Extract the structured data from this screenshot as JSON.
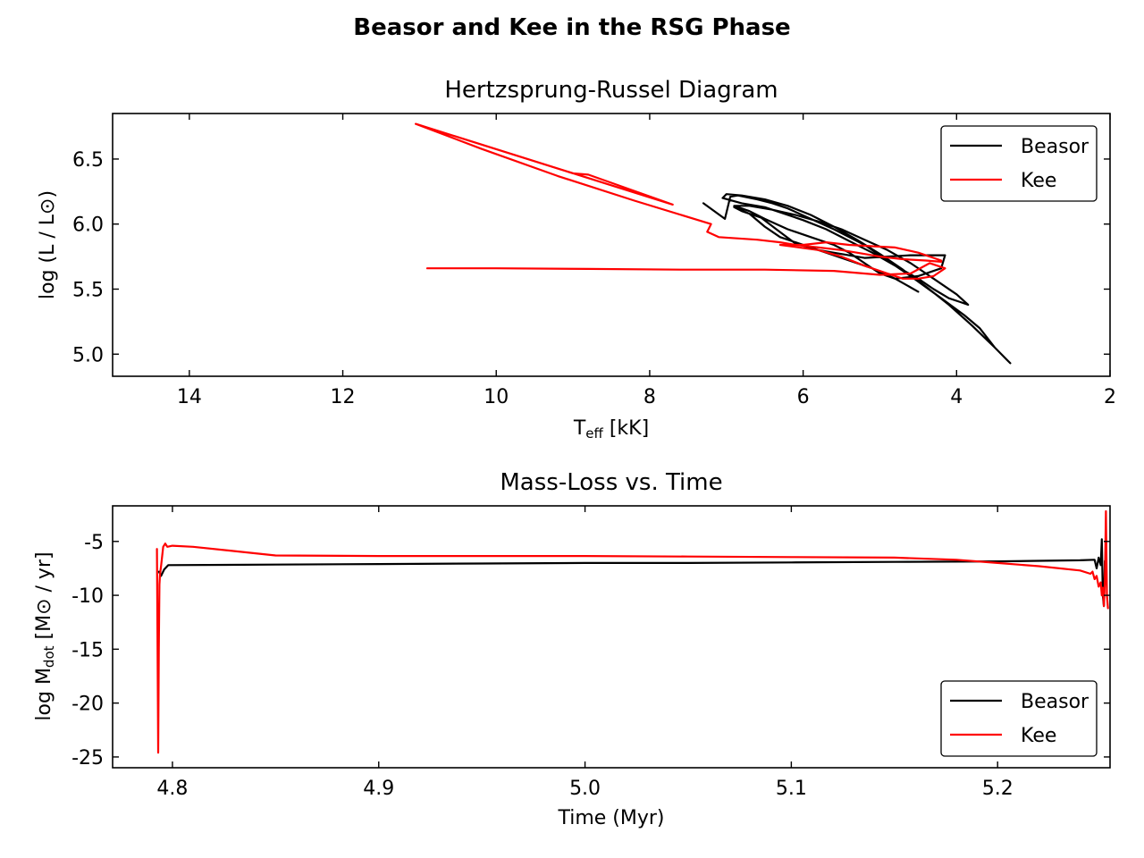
{
  "figure": {
    "suptitle": "Beasor and Kee in the RSG Phase"
  },
  "colors": {
    "beasor": "#000000",
    "kee": "#ff0000"
  },
  "chart_data": [
    {
      "type": "line",
      "title": "Hertzsprung-Russel Diagram",
      "xlabel": "T_eff [kK]",
      "ylabel": "log (L / L⊙)",
      "xlim": [
        15,
        2
      ],
      "ylim": [
        4.83,
        6.85
      ],
      "x_inverted": true,
      "xticks": [
        14,
        12,
        10,
        8,
        6,
        4,
        2
      ],
      "xtick_labels": [
        "14",
        "12",
        "10",
        "8",
        "6",
        "4",
        "2"
      ],
      "yticks": [
        5.0,
        5.5,
        6.0,
        6.5
      ],
      "ytick_labels": [
        "5.0",
        "5.5",
        "6.0",
        "6.5"
      ],
      "grid": false,
      "legend": "top-right",
      "series": [
        {
          "name": "Beasor",
          "color": "#000000",
          "x": [
            7.3,
            7.02,
            6.95,
            6.85,
            6.6,
            6.4,
            6.2,
            5.9,
            5.6,
            5.2,
            4.9,
            4.6,
            4.2,
            3.9,
            3.7,
            3.5,
            3.35,
            3.3,
            3.5,
            3.8,
            4.1,
            4.4,
            4.7,
            5.0,
            5.3,
            5.6,
            5.9,
            6.2,
            6.5,
            6.8,
            7.0,
            7.05,
            6.8,
            6.5,
            6.3,
            6.0,
            5.7,
            5.4,
            5.1,
            4.8,
            4.5,
            4.3,
            4.1,
            3.95,
            3.85,
            4.0,
            4.3,
            4.6,
            4.9,
            5.2,
            5.5,
            5.8,
            6.1,
            6.4,
            6.7,
            6.9,
            6.7,
            6.5,
            6.2,
            5.9,
            5.6,
            5.4,
            5.2,
            5.0,
            4.8,
            4.5,
            4.2,
            4.15,
            4.35,
            4.6,
            4.9,
            5.2,
            5.5,
            5.8,
            6.1,
            6.35,
            6.55,
            6.8,
            6.9,
            6.7,
            6.5,
            6.3,
            6.1,
            5.9,
            5.7,
            5.4,
            5.1,
            4.8,
            4.5
          ],
          "y": [
            6.16,
            6.04,
            6.21,
            6.22,
            6.19,
            6.16,
            6.12,
            6.04,
            5.96,
            5.84,
            5.72,
            5.6,
            5.43,
            5.3,
            5.2,
            5.05,
            4.96,
            4.93,
            5.05,
            5.22,
            5.38,
            5.52,
            5.65,
            5.77,
            5.88,
            5.98,
            6.07,
            6.14,
            6.19,
            6.22,
            6.23,
            6.2,
            6.16,
            6.13,
            6.09,
            6.03,
            5.96,
            5.87,
            5.78,
            5.68,
            5.58,
            5.5,
            5.43,
            5.4,
            5.38,
            5.46,
            5.58,
            5.7,
            5.8,
            5.88,
            5.96,
            6.02,
            6.07,
            6.11,
            6.14,
            6.14,
            6.1,
            6.04,
            5.96,
            5.9,
            5.84,
            5.78,
            5.7,
            5.62,
            5.58,
            5.6,
            5.66,
            5.76,
            5.76,
            5.76,
            5.75,
            5.74,
            5.77,
            5.8,
            5.85,
            5.96,
            6.05,
            6.1,
            6.13,
            6.08,
            5.98,
            5.9,
            5.86,
            5.82,
            5.78,
            5.72,
            5.66,
            5.58,
            5.48
          ]
        },
        {
          "name": "Kee",
          "color": "#ff0000",
          "x": [
            11.05,
            9.0,
            8.8,
            7.7,
            11.05,
            10.2,
            9.2,
            8.2,
            7.2,
            7.25,
            7.1,
            6.6,
            6.3,
            6.1,
            5.8,
            5.5,
            5.3,
            5.0,
            4.7,
            4.4,
            4.2,
            4.2,
            4.5,
            4.8,
            5.1,
            5.4,
            5.7,
            6.0,
            6.3,
            5.8,
            5.5,
            5.2,
            4.9,
            4.7,
            4.5,
            4.3,
            4.15,
            4.35,
            4.6,
            5.0,
            5.6,
            6.5,
            7.6,
            8.8,
            10.0,
            10.9
          ],
          "y": [
            6.77,
            6.39,
            6.38,
            6.15,
            6.77,
            6.58,
            6.37,
            6.18,
            6.0,
            5.94,
            5.9,
            5.88,
            5.86,
            5.84,
            5.82,
            5.8,
            5.78,
            5.75,
            5.73,
            5.72,
            5.71,
            5.72,
            5.78,
            5.82,
            5.83,
            5.84,
            5.86,
            5.84,
            5.84,
            5.8,
            5.75,
            5.68,
            5.62,
            5.58,
            5.58,
            5.6,
            5.66,
            5.7,
            5.62,
            5.61,
            5.64,
            5.65,
            5.65,
            5.655,
            5.66,
            5.66
          ]
        }
      ]
    },
    {
      "type": "line",
      "title": "Mass-Loss vs. Time",
      "xlabel": "Time (Myr)",
      "ylabel": "log M_dot [M⊙ / yr]",
      "xlim": [
        4.771,
        5.2545
      ],
      "ylim": [
        -26,
        -1.7
      ],
      "xticks": [
        4.8,
        4.9,
        5.0,
        5.1,
        5.2
      ],
      "xtick_labels": [
        "4.8",
        "4.9",
        "5.0",
        "5.1",
        "5.2"
      ],
      "yticks": [
        -5,
        -10,
        -15,
        -20,
        -25
      ],
      "ytick_labels": [
        "-5",
        "-10",
        "-15",
        "-20",
        "-25"
      ],
      "grid": false,
      "legend": "lower-right",
      "series": [
        {
          "name": "Beasor",
          "color": "#000000",
          "x": [
            4.7935,
            4.7945,
            4.796,
            4.798,
            4.85,
            4.9,
            4.95,
            5.0,
            5.05,
            5.1,
            5.15,
            5.2,
            5.24,
            5.247,
            5.248,
            5.249,
            5.25,
            5.2505,
            5.251,
            5.2515,
            5.252,
            5.2525
          ],
          "y": [
            -7.8,
            -8.2,
            -7.6,
            -7.2,
            -7.15,
            -7.1,
            -7.05,
            -7.0,
            -7.0,
            -6.95,
            -6.9,
            -6.85,
            -6.75,
            -6.7,
            -7.5,
            -6.5,
            -7.2,
            -4.8,
            -10.0,
            -11.0,
            -6.8,
            -6.7
          ]
        },
        {
          "name": "Kee",
          "color": "#ff0000",
          "x": [
            4.7925,
            4.7928,
            4.7931,
            4.7934,
            4.7937,
            4.794,
            4.7945,
            4.7955,
            4.7965,
            4.7975,
            4.8,
            4.81,
            4.83,
            4.85,
            4.9,
            5.0,
            5.05,
            5.1,
            5.15,
            5.18,
            5.2,
            5.22,
            5.24,
            5.245,
            5.246,
            5.247,
            5.248,
            5.249,
            5.25,
            5.2505,
            5.251,
            5.2515,
            5.252,
            5.2525,
            5.253,
            5.2535
          ],
          "y": [
            -5.7,
            -15.0,
            -24.6,
            -15.0,
            -9.0,
            -8.0,
            -7.3,
            -5.5,
            -5.2,
            -5.5,
            -5.4,
            -5.5,
            -5.9,
            -6.3,
            -6.35,
            -6.35,
            -6.4,
            -6.45,
            -6.5,
            -6.7,
            -7.0,
            -7.3,
            -7.7,
            -8.0,
            -7.8,
            -8.5,
            -8.2,
            -9.2,
            -8.8,
            -10.0,
            -9.3,
            -11.0,
            -8.8,
            -2.2,
            -10.0,
            -11.2
          ]
        }
      ]
    }
  ]
}
